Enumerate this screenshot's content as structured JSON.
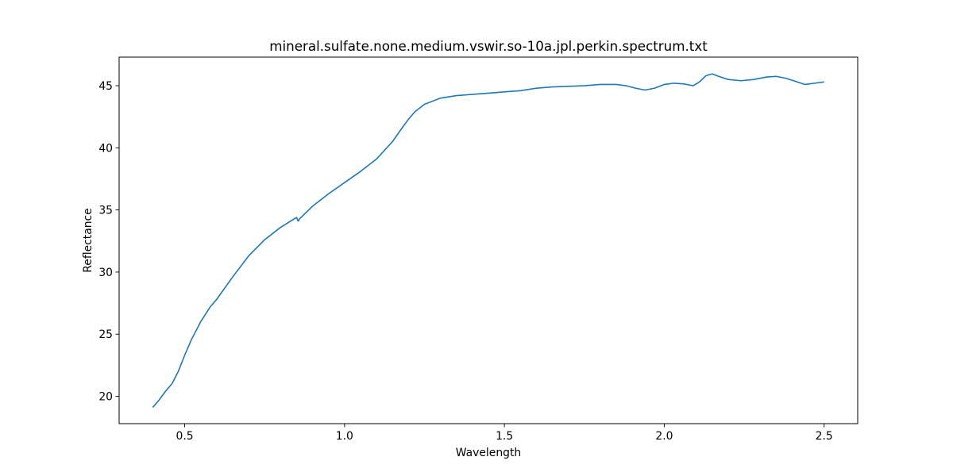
{
  "chart_data": {
    "type": "line",
    "title": "mineral.sulfate.none.medium.vswir.so-10a.jpl.perkin.spectrum.txt",
    "xlabel": "Wavelength",
    "ylabel": "Reflectance",
    "xlim": [
      0.295,
      2.605
    ],
    "ylim": [
      17.8,
      47.3
    ],
    "xticks": [
      0.5,
      1.0,
      1.5,
      2.0,
      2.5
    ],
    "xtick_labels": [
      "0.5",
      "1.0",
      "1.5",
      "2.0",
      "2.5"
    ],
    "yticks": [
      20,
      25,
      30,
      35,
      40,
      45
    ],
    "ytick_labels": [
      "20",
      "25",
      "30",
      "35",
      "40",
      "45"
    ],
    "grid": false,
    "series": [
      {
        "color": "#1f77b4",
        "x": [
          0.4,
          0.42,
          0.44,
          0.46,
          0.48,
          0.5,
          0.52,
          0.55,
          0.58,
          0.6,
          0.65,
          0.7,
          0.75,
          0.8,
          0.85,
          0.855,
          0.86,
          0.9,
          0.95,
          1.0,
          1.05,
          1.1,
          1.15,
          1.18,
          1.2,
          1.22,
          1.25,
          1.28,
          1.3,
          1.35,
          1.4,
          1.45,
          1.5,
          1.55,
          1.6,
          1.65,
          1.7,
          1.75,
          1.8,
          1.85,
          1.88,
          1.91,
          1.94,
          1.97,
          2.0,
          2.03,
          2.06,
          2.09,
          2.11,
          2.13,
          2.15,
          2.17,
          2.2,
          2.24,
          2.28,
          2.32,
          2.35,
          2.38,
          2.41,
          2.44,
          2.47,
          2.5
        ],
        "y": [
          19.1,
          19.7,
          20.4,
          21.0,
          22.0,
          23.3,
          24.5,
          26.0,
          27.2,
          27.8,
          29.6,
          31.3,
          32.6,
          33.6,
          34.4,
          34.1,
          34.3,
          35.3,
          36.3,
          37.2,
          38.1,
          39.1,
          40.5,
          41.6,
          42.3,
          42.9,
          43.5,
          43.8,
          44.0,
          44.2,
          44.3,
          44.4,
          44.5,
          44.6,
          44.8,
          44.9,
          44.95,
          45.0,
          45.1,
          45.1,
          45.0,
          44.8,
          44.65,
          44.8,
          45.1,
          45.2,
          45.15,
          45.0,
          45.3,
          45.8,
          45.95,
          45.75,
          45.5,
          45.4,
          45.5,
          45.7,
          45.75,
          45.6,
          45.35,
          45.1,
          45.2,
          45.3
        ]
      }
    ]
  }
}
